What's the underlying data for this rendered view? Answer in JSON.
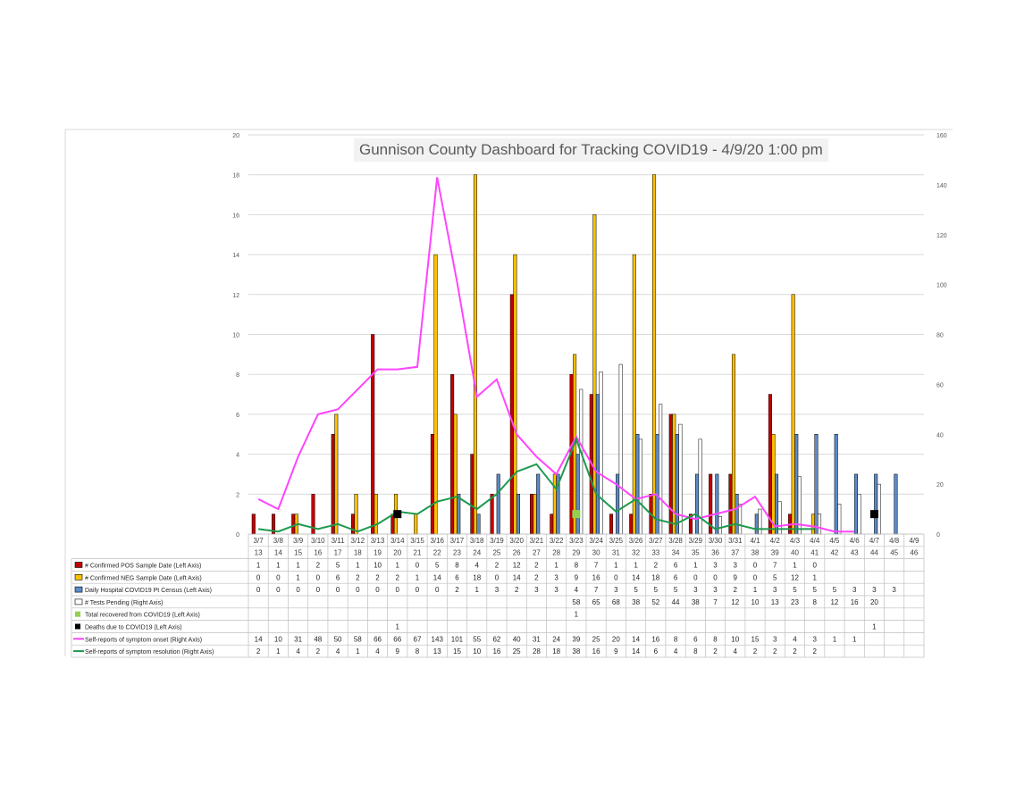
{
  "chart_data": {
    "type": "bar",
    "title": "Gunnison County Dashboard for Tracking COVID19 - 4/9/20 1:00 pm",
    "left_axis": {
      "ylim": [
        0,
        20
      ],
      "ticks": [
        0,
        2,
        4,
        6,
        8,
        10,
        12,
        14,
        16,
        18,
        20
      ]
    },
    "right_axis": {
      "ylim": [
        0,
        160
      ],
      "ticks": [
        0,
        20,
        40,
        60,
        80,
        100,
        120,
        140,
        160
      ]
    },
    "grid": "horizontal",
    "legend": "data-table",
    "categories": [
      "3/7",
      "3/8",
      "3/9",
      "3/10",
      "3/11",
      "3/12",
      "3/13",
      "3/14",
      "3/15",
      "3/16",
      "3/17",
      "3/18",
      "3/19",
      "3/20",
      "3/21",
      "3/22",
      "3/23",
      "3/24",
      "3/25",
      "3/26",
      "3/27",
      "3/28",
      "3/29",
      "3/30",
      "3/31",
      "4/1",
      "4/2",
      "4/3",
      "4/4",
      "4/5",
      "4/6",
      "4/7",
      "4/8",
      "4/9"
    ],
    "day_numbers": [
      "13",
      "14",
      "15",
      "16",
      "17",
      "18",
      "19",
      "20",
      "21",
      "22",
      "23",
      "24",
      "25",
      "26",
      "27",
      "28",
      "29",
      "30",
      "31",
      "32",
      "33",
      "34",
      "35",
      "36",
      "37",
      "38",
      "39",
      "40",
      "41",
      "42",
      "43",
      "44",
      "45",
      "46"
    ],
    "series": [
      {
        "name": "# Confirmed POS Sample Date (Left Axis)",
        "kind": "bar",
        "axis": "left",
        "color": "#c00000",
        "values": [
          1,
          1,
          1,
          2,
          5,
          1,
          10,
          1,
          0,
          5,
          8,
          4,
          2,
          12,
          2,
          1,
          8,
          7,
          1,
          1,
          2,
          6,
          1,
          3,
          3,
          0,
          7,
          1,
          0,
          null,
          null,
          null,
          null,
          null
        ]
      },
      {
        "name": "# Confirmed NEG Sample Date (Left Axis)",
        "kind": "bar",
        "axis": "left",
        "color": "#ffc000",
        "values": [
          0,
          0,
          1,
          0,
          6,
          2,
          2,
          2,
          1,
          14,
          6,
          18,
          0,
          14,
          2,
          3,
          9,
          16,
          0,
          14,
          18,
          6,
          0,
          0,
          9,
          0,
          5,
          12,
          1,
          null,
          null,
          null,
          null,
          null
        ]
      },
      {
        "name": "Daily Hospital COVID19 Pt Census (Left Axis)",
        "kind": "bar",
        "axis": "left",
        "color": "#5b8ac8",
        "values": [
          0,
          0,
          0,
          0,
          0,
          0,
          0,
          0,
          0,
          0,
          2,
          1,
          3,
          2,
          3,
          3,
          4,
          7,
          3,
          5,
          5,
          5,
          3,
          3,
          2,
          1,
          3,
          5,
          5,
          5,
          3,
          3,
          3,
          null
        ]
      },
      {
        "name": "# Tests Pending (Right Axis)",
        "kind": "bar",
        "axis": "right",
        "color": "#ffffff",
        "values": [
          null,
          null,
          null,
          null,
          null,
          null,
          null,
          null,
          null,
          null,
          null,
          null,
          null,
          null,
          null,
          null,
          58,
          65,
          68,
          38,
          52,
          44,
          38,
          7,
          12,
          10,
          13,
          23,
          8,
          12,
          16,
          20,
          null,
          null
        ]
      },
      {
        "name": "Total recovered from COVID19 (Left Axis)",
        "kind": "marker",
        "axis": "left",
        "color": "#92d050",
        "values": [
          null,
          null,
          null,
          null,
          null,
          null,
          null,
          null,
          null,
          null,
          null,
          null,
          null,
          null,
          null,
          null,
          1,
          null,
          null,
          null,
          null,
          null,
          null,
          null,
          null,
          null,
          null,
          null,
          null,
          null,
          null,
          null,
          null,
          null
        ]
      },
      {
        "name": "Deaths due to COVID19 (Left Axis)",
        "kind": "marker",
        "axis": "left",
        "color": "#000000",
        "values": [
          null,
          null,
          null,
          null,
          null,
          null,
          null,
          1,
          null,
          null,
          null,
          null,
          null,
          null,
          null,
          null,
          null,
          null,
          null,
          null,
          null,
          null,
          null,
          null,
          null,
          null,
          null,
          null,
          null,
          null,
          null,
          1,
          null,
          null
        ]
      },
      {
        "name": "Self-reports of symptom onset (Right Axis)",
        "kind": "line",
        "axis": "right",
        "color": "#ff44ff",
        "values": [
          14,
          10,
          31,
          48,
          50,
          58,
          66,
          66,
          67,
          143,
          101,
          55,
          62,
          40,
          31,
          24,
          39,
          25,
          20,
          14,
          16,
          8,
          6,
          8,
          10,
          15,
          3,
          4,
          3,
          1,
          1,
          null,
          null,
          null
        ]
      },
      {
        "name": "Self-reports of symptom resolution (Right Axis)",
        "kind": "line",
        "axis": "right",
        "color": "#1d9a4e",
        "values": [
          2,
          1,
          4,
          2,
          4,
          1,
          4,
          9,
          8,
          13,
          15,
          10,
          16,
          25,
          28,
          18,
          38,
          16,
          9,
          14,
          6,
          4,
          8,
          2,
          4,
          2,
          2,
          2,
          2,
          null,
          null,
          null,
          null,
          null
        ]
      }
    ]
  }
}
